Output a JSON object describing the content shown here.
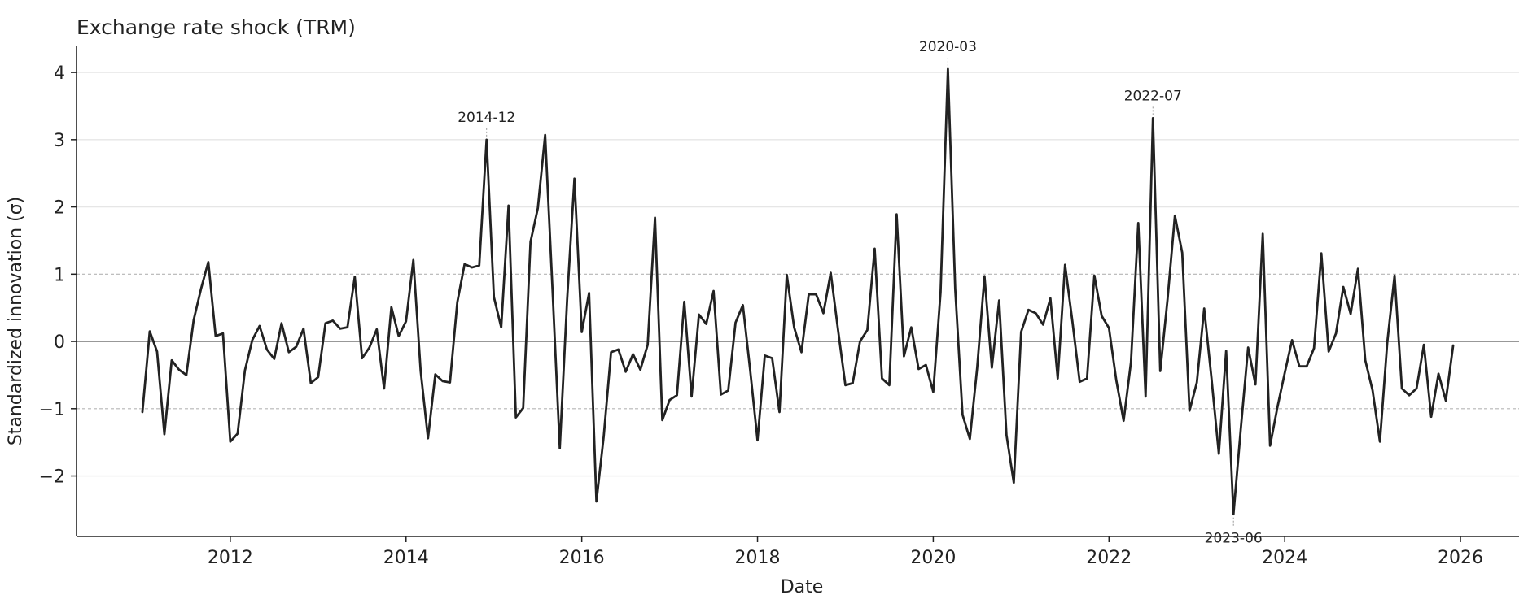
{
  "chart_data": {
    "type": "line",
    "title": "Exchange rate shock (TRM)",
    "xlabel": "Date",
    "ylabel": "Standardized innovation (σ)",
    "x_axis": {
      "kind": "date",
      "range": [
        "2010-04",
        "2026-09"
      ],
      "tick_labels": [
        "2012",
        "2014",
        "2016",
        "2018",
        "2020",
        "2022",
        "2024",
        "2026"
      ]
    },
    "y_axis": {
      "range": [
        -2.9,
        4.4
      ],
      "tick_values": [
        -2,
        -1,
        0,
        1,
        2,
        3,
        4
      ],
      "tick_labels": [
        "−2",
        "−1",
        "0",
        "1",
        "2",
        "3",
        "4"
      ]
    },
    "grid": {
      "horizontal": true,
      "vertical": false,
      "dashed_levels": [
        1,
        -1
      ]
    },
    "zero_line": true,
    "legend": "none",
    "colors": {
      "series": "#222222",
      "grid": "#e6e6e6",
      "zero_line": "#8a8a8a",
      "dashed": "#b5b5b5",
      "annotation_tick": "#999999",
      "axis": "#222222"
    },
    "series": [
      {
        "start": "2011-01",
        "frequency": "monthly",
        "values": [
          -1.05,
          0.15,
          -0.15,
          -1.38,
          -0.28,
          -0.42,
          -0.5,
          0.32,
          0.78,
          1.18,
          0.08,
          0.12,
          -1.49,
          -1.37,
          -0.43,
          0.02,
          0.23,
          -0.12,
          -0.26,
          0.27,
          -0.16,
          -0.08,
          0.19,
          -0.62,
          -0.53,
          0.27,
          0.31,
          0.19,
          0.21,
          0.96,
          -0.25,
          -0.09,
          0.18,
          -0.7,
          0.51,
          0.08,
          0.3,
          1.21,
          -0.44,
          -1.44,
          -0.49,
          -0.59,
          -0.61,
          0.58,
          1.15,
          1.1,
          1.13,
          3.0,
          0.66,
          0.21,
          2.02,
          -1.13,
          -0.99,
          1.48,
          1.98,
          3.07,
          0.78,
          -1.59,
          0.62,
          2.42,
          0.14,
          0.72,
          -2.38,
          -1.41,
          -0.16,
          -0.12,
          -0.45,
          -0.19,
          -0.42,
          -0.05,
          1.84,
          -1.17,
          -0.87,
          -0.8,
          0.59,
          -0.82,
          0.4,
          0.26,
          0.75,
          -0.79,
          -0.73,
          0.28,
          0.54,
          -0.43,
          -1.47,
          -0.21,
          -0.25,
          -1.05,
          0.99,
          0.21,
          -0.16,
          0.7,
          0.7,
          0.42,
          1.02,
          0.17,
          -0.65,
          -0.62,
          0.0,
          0.17,
          1.38,
          -0.55,
          -0.65,
          1.89,
          -0.22,
          0.21,
          -0.41,
          -0.35,
          -0.75,
          0.73,
          4.05,
          0.78,
          -1.09,
          -1.45,
          -0.39,
          0.97,
          -0.39,
          0.61,
          -1.39,
          -2.1,
          0.14,
          0.47,
          0.42,
          0.25,
          0.64,
          -0.55,
          1.14,
          0.3,
          -0.6,
          -0.55,
          0.98,
          0.38,
          0.2,
          -0.58,
          -1.18,
          -0.31,
          1.76,
          -0.82,
          3.32,
          -0.44,
          0.63,
          1.87,
          1.32,
          -1.03,
          -0.61,
          0.49,
          -0.55,
          -1.67,
          -0.14,
          -2.57,
          -1.3,
          -0.09,
          -0.64,
          1.6,
          -1.55,
          -0.98,
          -0.47,
          0.02,
          -0.37,
          -0.37,
          -0.1,
          1.31,
          -0.15,
          0.12,
          0.81,
          0.41,
          1.08,
          -0.28,
          -0.73,
          -1.49,
          -0.02,
          0.98,
          -0.7,
          -0.8,
          -0.7,
          -0.05,
          -1.12,
          -0.48,
          -0.88,
          -0.06
        ]
      }
    ],
    "annotations": [
      {
        "text": "2014-12",
        "date": "2014-12",
        "y": 3.0,
        "position": "above"
      },
      {
        "text": "2020-03",
        "date": "2020-03",
        "y": 4.05,
        "position": "above"
      },
      {
        "text": "2022-07",
        "date": "2022-07",
        "y": 3.32,
        "position": "above"
      },
      {
        "text": "2023-06",
        "date": "2023-06",
        "y": -2.57,
        "position": "below"
      }
    ]
  }
}
